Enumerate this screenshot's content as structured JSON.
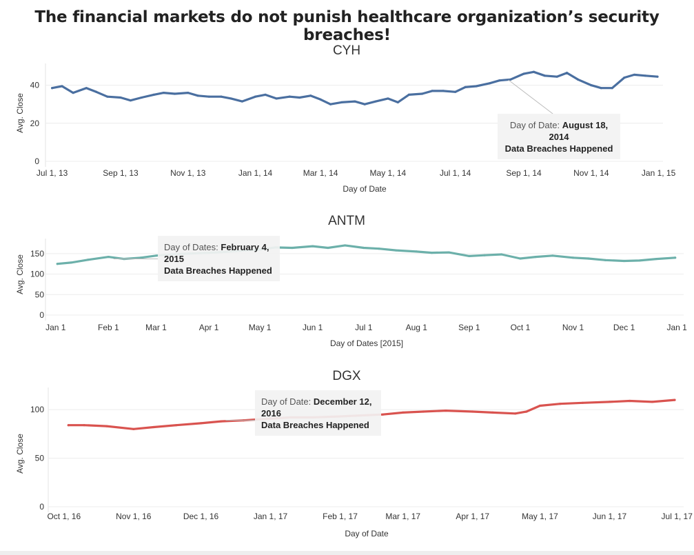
{
  "page": {
    "title": "The financial markets do not punish healthcare organization’s security breaches!"
  },
  "chart_data": [
    {
      "type": "line",
      "title": "CYH",
      "xlabel": "Day of Date",
      "ylabel": "Avg. Close",
      "color": "#4a6fa0",
      "x_start": "2013-06-25",
      "x_end": "2015-01-05",
      "ylim": [
        0,
        50
      ],
      "yticks": [
        0,
        20,
        40
      ],
      "xticks": [
        {
          "label": "Jul 1, 13",
          "date": "2013-07-01"
        },
        {
          "label": "Sep 1, 13",
          "date": "2013-09-01"
        },
        {
          "label": "Nov 1, 13",
          "date": "2013-11-01"
        },
        {
          "label": "Jan 1, 14",
          "date": "2014-01-01"
        },
        {
          "label": "Mar 1, 14",
          "date": "2014-03-01"
        },
        {
          "label": "May 1, 14",
          "date": "2014-05-01"
        },
        {
          "label": "Jul 1, 14",
          "date": "2014-07-01"
        },
        {
          "label": "Sep 1, 14",
          "date": "2014-09-01"
        },
        {
          "label": "Nov 1, 14",
          "date": "2014-11-01"
        },
        {
          "label": "Jan 1, 15",
          "date": "2015-01-01"
        }
      ],
      "x": [
        "2013-07-01",
        "2013-07-10",
        "2013-07-20",
        "2013-08-01",
        "2013-08-10",
        "2013-08-20",
        "2013-09-01",
        "2013-09-10",
        "2013-09-20",
        "2013-10-01",
        "2013-10-10",
        "2013-10-20",
        "2013-11-01",
        "2013-11-10",
        "2013-11-20",
        "2013-12-01",
        "2013-12-10",
        "2013-12-20",
        "2014-01-01",
        "2014-01-10",
        "2014-01-20",
        "2014-02-01",
        "2014-02-10",
        "2014-02-20",
        "2014-03-01",
        "2014-03-10",
        "2014-03-20",
        "2014-04-01",
        "2014-04-10",
        "2014-04-20",
        "2014-05-01",
        "2014-05-10",
        "2014-05-20",
        "2014-06-01",
        "2014-06-10",
        "2014-06-20",
        "2014-07-01",
        "2014-07-10",
        "2014-07-20",
        "2014-08-01",
        "2014-08-10",
        "2014-08-20",
        "2014-09-01",
        "2014-09-10",
        "2014-09-20",
        "2014-10-01",
        "2014-10-10",
        "2014-10-20",
        "2014-11-01",
        "2014-11-10",
        "2014-11-20",
        "2014-12-01",
        "2014-12-10",
        "2014-12-20",
        "2014-12-31"
      ],
      "values": [
        38.5,
        39.5,
        36,
        38.5,
        36.5,
        34,
        33.5,
        32,
        33.5,
        35,
        36,
        35.5,
        36,
        34.5,
        34,
        34,
        33,
        31.5,
        34,
        35,
        33,
        34,
        33.5,
        34.5,
        32.5,
        30,
        31,
        31.5,
        30,
        31.5,
        33,
        31,
        35,
        35.5,
        37,
        37,
        36.5,
        39,
        39.5,
        41,
        42.5,
        43,
        46,
        47,
        45,
        44.5,
        46.5,
        43,
        40,
        38.5,
        38.5,
        44,
        45.5,
        45,
        44.5
      ],
      "annotation": {
        "date_label": "Day of Date:",
        "date_value": "August 18,",
        "date_value2": "2014",
        "event": "Data Breaches Happened",
        "at_date": "2014-08-18",
        "at_value": 42.8
      }
    },
    {
      "type": "line",
      "title": "ANTM",
      "xlabel": "Day of Dates [2015]",
      "ylabel": "Avg. Close",
      "color": "#6cb0aa",
      "x_start": "2014-12-26",
      "x_end": "2016-01-05",
      "ylim": [
        0,
        180
      ],
      "yticks": [
        0,
        50,
        100,
        150
      ],
      "xticks": [
        {
          "label": "Jan 1",
          "date": "2015-01-01"
        },
        {
          "label": "Feb 1",
          "date": "2015-02-01"
        },
        {
          "label": "Mar 1",
          "date": "2015-03-01"
        },
        {
          "label": "Apr 1",
          "date": "2015-04-01"
        },
        {
          "label": "May 1",
          "date": "2015-05-01"
        },
        {
          "label": "Jun 1",
          "date": "2015-06-01"
        },
        {
          "label": "Jul 1",
          "date": "2015-07-01"
        },
        {
          "label": "Aug 1",
          "date": "2015-08-01"
        },
        {
          "label": "Sep 1",
          "date": "2015-09-01"
        },
        {
          "label": "Oct 1",
          "date": "2015-10-01"
        },
        {
          "label": "Nov 1",
          "date": "2015-11-01"
        },
        {
          "label": "Dec 1",
          "date": "2015-12-01"
        },
        {
          "label": "Jan 1",
          "date": "2016-01-01"
        }
      ],
      "x": [
        "2015-01-02",
        "2015-01-10",
        "2015-01-20",
        "2015-02-01",
        "2015-02-10",
        "2015-02-20",
        "2015-03-01",
        "2015-03-10",
        "2015-03-20",
        "2015-04-01",
        "2015-04-10",
        "2015-04-20",
        "2015-05-01",
        "2015-05-10",
        "2015-05-20",
        "2015-06-01",
        "2015-06-10",
        "2015-06-20",
        "2015-07-01",
        "2015-07-10",
        "2015-07-20",
        "2015-08-01",
        "2015-08-10",
        "2015-08-20",
        "2015-09-01",
        "2015-09-10",
        "2015-09-20",
        "2015-10-01",
        "2015-10-10",
        "2015-10-20",
        "2015-11-01",
        "2015-11-10",
        "2015-11-20",
        "2015-12-01",
        "2015-12-10",
        "2015-12-20",
        "2015-12-31"
      ],
      "values": [
        125,
        128,
        135,
        142,
        137,
        140,
        145,
        148,
        150,
        152,
        154,
        157,
        160,
        165,
        164,
        168,
        164,
        170,
        164,
        162,
        158,
        155,
        152,
        153,
        144,
        146,
        148,
        138,
        142,
        145,
        140,
        138,
        134,
        132,
        133,
        137,
        140
      ],
      "annotation": {
        "date_label": "Day of Dates:",
        "date_value": "February 4,",
        "date_value2": "2015",
        "event": "Data Breaches Happened",
        "at_date": "2015-02-04",
        "at_value": 137
      }
    },
    {
      "type": "line",
      "title": "DGX",
      "xlabel": "Day of Date",
      "ylabel": "Avg. Close",
      "color": "#d9534f",
      "x_start": "2016-09-24",
      "x_end": "2017-07-04",
      "ylim": [
        0,
        120
      ],
      "yticks": [
        0,
        50,
        100
      ],
      "xticks": [
        {
          "label": "Oct 1, 16",
          "date": "2016-10-01"
        },
        {
          "label": "Nov 1, 16",
          "date": "2016-11-01"
        },
        {
          "label": "Dec 1, 16",
          "date": "2016-12-01"
        },
        {
          "label": "Jan 1, 17",
          "date": "2017-01-01"
        },
        {
          "label": "Feb 1, 17",
          "date": "2017-02-01"
        },
        {
          "label": "Mar 1, 17",
          "date": "2017-03-01"
        },
        {
          "label": "Apr 1, 17",
          "date": "2017-04-01"
        },
        {
          "label": "May 1, 17",
          "date": "2017-05-01"
        },
        {
          "label": "Jun 1, 17",
          "date": "2017-06-01"
        },
        {
          "label": "Jul 1, 17",
          "date": "2017-07-01"
        }
      ],
      "x": [
        "2016-10-03",
        "2016-10-10",
        "2016-10-20",
        "2016-11-01",
        "2016-11-10",
        "2016-11-20",
        "2016-12-01",
        "2016-12-10",
        "2016-12-20",
        "2017-01-03",
        "2017-01-10",
        "2017-01-20",
        "2017-02-01",
        "2017-02-10",
        "2017-02-20",
        "2017-03-01",
        "2017-03-10",
        "2017-03-20",
        "2017-04-01",
        "2017-04-10",
        "2017-04-20",
        "2017-04-25",
        "2017-05-01",
        "2017-05-10",
        "2017-05-20",
        "2017-06-01",
        "2017-06-10",
        "2017-06-20",
        "2017-06-30"
      ],
      "values": [
        84,
        84,
        83,
        80,
        82,
        84,
        86,
        88,
        89,
        91,
        92,
        92,
        93,
        94,
        95,
        97,
        98,
        99,
        98,
        97,
        96,
        98,
        104,
        106,
        107,
        108,
        109,
        108,
        110
      ],
      "annotation": {
        "date_label": "Day of Date:",
        "date_value": "December 12,",
        "date_value2": "2016",
        "event": "Data Breaches Happened",
        "at_date": "2016-12-12",
        "at_value": 89
      }
    }
  ]
}
